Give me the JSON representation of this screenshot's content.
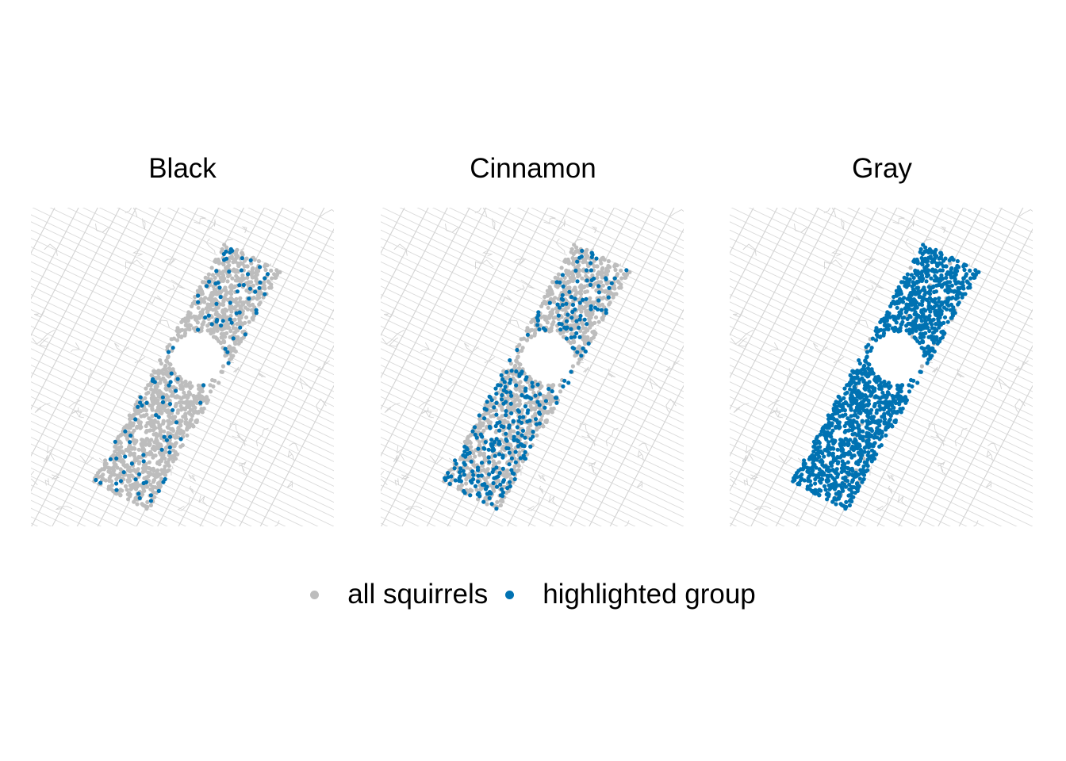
{
  "panels": [
    {
      "title": "Black",
      "highlight_share": 0.06,
      "highlight_bias": "edges"
    },
    {
      "title": "Cinnamon",
      "highlight_share": 0.22,
      "highlight_bias": "south"
    },
    {
      "title": "Gray",
      "highlight_share": 0.97,
      "highlight_bias": "none"
    }
  ],
  "legend": {
    "items": [
      {
        "label": "all squirrels",
        "color": "#bdbdbd"
      },
      {
        "label": "highlighted group",
        "color": "#0072b2"
      }
    ]
  },
  "colors": {
    "basemap": "#d3d3d3",
    "all": "#bdbdbd",
    "highlight": "#0072b2",
    "background": "#ffffff"
  }
}
